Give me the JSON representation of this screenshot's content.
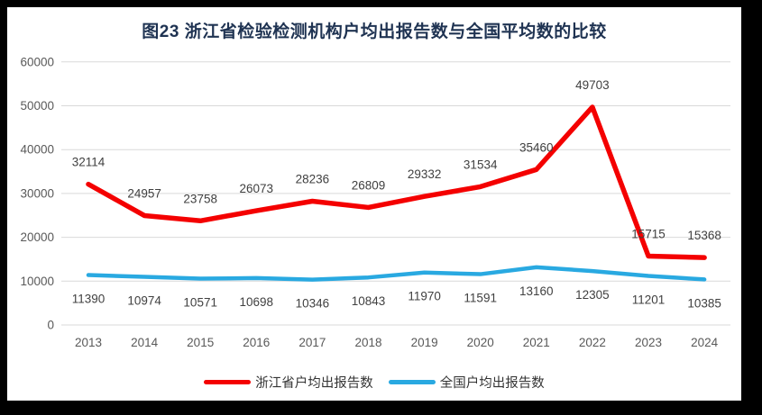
{
  "frame": {
    "background": "#000000",
    "card_background": "#ffffff"
  },
  "chart_data": {
    "type": "line",
    "title": "图23  浙江省检验检测机构户均出报告数与全国平均数的比较",
    "categories": [
      "2013",
      "2014",
      "2015",
      "2016",
      "2017",
      "2018",
      "2019",
      "2020",
      "2021",
      "2022",
      "2023",
      "2024"
    ],
    "series": [
      {
        "name": "浙江省户均出报告数",
        "color": "#f40000",
        "line_width": 5.5,
        "label_dy": -20,
        "values": [
          32114,
          24957,
          23758,
          26073,
          28236,
          26809,
          29332,
          31534,
          35460,
          49703,
          15715,
          15368
        ]
      },
      {
        "name": "全国户均出报告数",
        "color": "#29a9e1",
        "line_width": 4.5,
        "label_dy": 31,
        "values": [
          11390,
          10974,
          10571,
          10698,
          10346,
          10843,
          11970,
          11591,
          13160,
          12305,
          11201,
          10385
        ]
      }
    ],
    "xlabel": "",
    "ylabel": "",
    "ylim": [
      0,
      60000
    ],
    "ytick_step": 10000,
    "ytick_labels": [
      "0",
      "10000",
      "20000",
      "30000",
      "40000",
      "50000",
      "60000"
    ],
    "grid": true,
    "legend_position": "bottom",
    "colors": {
      "gridline": "#d9d9d9",
      "axis_label": "#595959",
      "data_label": "#404040",
      "title": "#1f3352"
    }
  }
}
